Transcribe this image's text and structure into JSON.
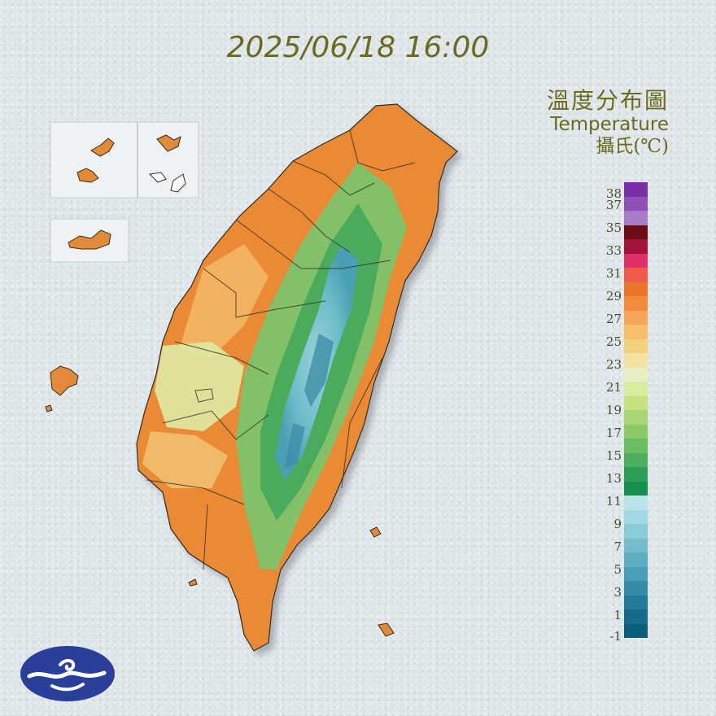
{
  "timestamp": "2025/06/18 16:00",
  "legend": {
    "title_zh": "溫度分布圖",
    "title_en": "Temperature",
    "unit": "攝氏(℃)",
    "tick_labels": [
      "38",
      "37",
      "35",
      "33",
      "31",
      "29",
      "27",
      "25",
      "23",
      "21",
      "19",
      "17",
      "15",
      "13",
      "11",
      "9",
      "7",
      "5",
      "3",
      "1",
      "-1"
    ],
    "colors_top_to_bottom": [
      "#7a2ea8",
      "#8e50b4",
      "#a77cc4",
      "#6b0d12",
      "#a3123a",
      "#e0306a",
      "#ef5a4a",
      "#e8762a",
      "#f08c3c",
      "#f4a55a",
      "#f5bd6c",
      "#f3d27e",
      "#f2e4a0",
      "#e9efc4",
      "#d9ec9e",
      "#c4e280",
      "#a8d672",
      "#8acb68",
      "#6bbd62",
      "#4cae5e",
      "#2e9e58",
      "#17904e",
      "#b8e4ea",
      "#a2d8e2",
      "#8ccbd8",
      "#76bccd",
      "#5fadc2",
      "#4a9db6",
      "#368ca8",
      "#247b98",
      "#156b88",
      "#0c5f7b"
    ],
    "primary_colors": {
      "hot": "#e8762a",
      "mild": "#e9efc4",
      "cool": "#2e9e58",
      "cold": "#5fadc2"
    }
  },
  "icons": {
    "logo": "cwa-cloud-logo-icon"
  }
}
